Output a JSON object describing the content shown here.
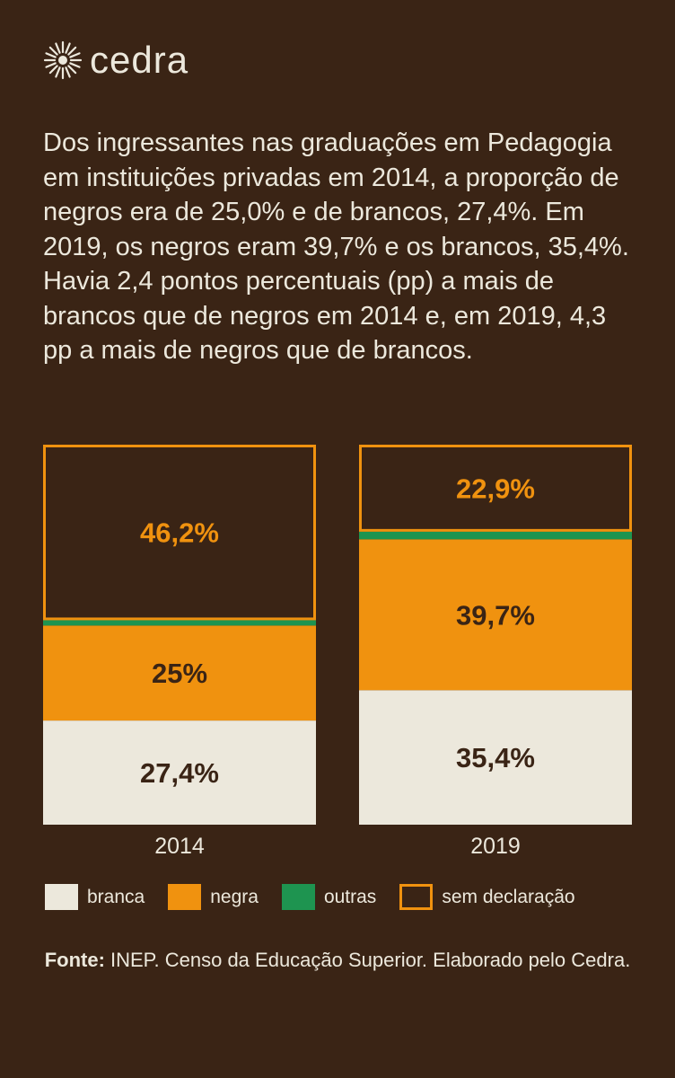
{
  "brand": {
    "name": "cedra",
    "icon": "sunburst-icon"
  },
  "intro": "Dos ingressantes nas graduações em Pedagogia em instituições privadas em 2014, a proporção de negros era de 25,0% e de brancos, 27,4%. Em 2019, os negros eram 39,7% e os brancos, 35,4%. Havia 2,4 pontos percentuais (pp) a mais de brancos que de negros em 2014 e, em 2019, 4,3 pp a mais de negros que de brancos.",
  "colors": {
    "background": "#3a2415",
    "branca": "#ece8dc",
    "negra": "#f0920f",
    "outras": "#1e9450",
    "sem_declaracao_border": "#f0920f",
    "text_light": "#ece8dc",
    "text_dark": "#3a2415"
  },
  "chart_data": {
    "type": "bar",
    "stacked": true,
    "categories": [
      "2014",
      "2019"
    ],
    "series": [
      {
        "name": "branca",
        "values": [
          27.4,
          35.4
        ],
        "labels": [
          "27,4%",
          "35,4%"
        ]
      },
      {
        "name": "negra",
        "values": [
          25.0,
          39.7
        ],
        "labels": [
          "25%",
          "39,7%"
        ]
      },
      {
        "name": "outras",
        "values": [
          1.4,
          2.0
        ],
        "labels": [
          "",
          ""
        ]
      },
      {
        "name": "sem declaração",
        "values": [
          46.2,
          22.9
        ],
        "labels": [
          "46,2%",
          "22,9%"
        ]
      }
    ],
    "title": "",
    "xlabel": "",
    "ylabel": "",
    "ylim": [
      0,
      100
    ],
    "legend_position": "bottom",
    "grid": false
  },
  "legend": [
    {
      "label": "branca",
      "style": "fill-light"
    },
    {
      "label": "negra",
      "style": "fill-orange"
    },
    {
      "label": "outras",
      "style": "fill-green"
    },
    {
      "label": "sem declaração",
      "style": "outline-orange"
    }
  ],
  "source": {
    "label": "Fonte:",
    "text": " INEP. Censo da Educação Superior. Elaborado pelo Cedra."
  }
}
